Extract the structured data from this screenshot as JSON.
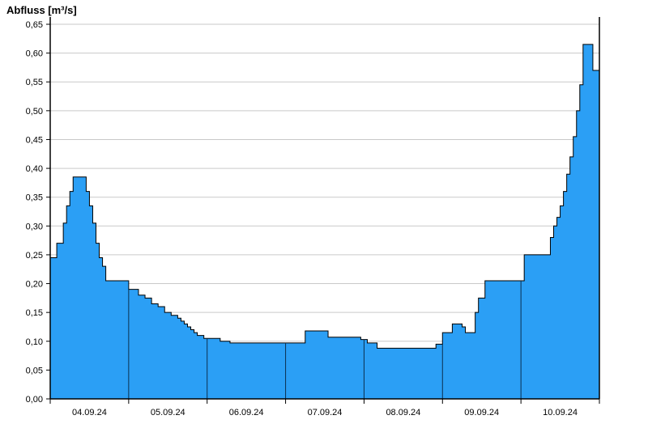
{
  "chart_data": {
    "type": "area",
    "title": "Abfluss [m³/s]",
    "ylabel": "Abfluss [m³/s]",
    "unit": "m³/s",
    "series_name": "Abfluss",
    "ylim": [
      0,
      0.65
    ],
    "y_tick_values": [
      0,
      0.05,
      0.1,
      0.15,
      0.2,
      0.25,
      0.3,
      0.35,
      0.4,
      0.45,
      0.5,
      0.55,
      0.6,
      0.65
    ],
    "y_tick_labels": [
      "0,00",
      "0,05",
      "0,10",
      "0,15",
      "0,20",
      "0,25",
      "0,30",
      "0,35",
      "0,40",
      "0,45",
      "0,50",
      "0,55",
      "0,60",
      "0,65"
    ],
    "x_tick_labels": [
      "04.09.24",
      "05.09.24",
      "06.09.24",
      "07.09.24",
      "08.09.24",
      "09.09.24",
      "10.09.24"
    ],
    "hours_total": 168,
    "hours_per_day": 24,
    "grid": "horizontal",
    "legend": "none",
    "steps": [
      [
        0,
        0.245
      ],
      [
        2,
        0.27
      ],
      [
        4,
        0.305
      ],
      [
        5,
        0.335
      ],
      [
        6,
        0.36
      ],
      [
        7,
        0.385
      ],
      [
        11,
        0.36
      ],
      [
        12,
        0.335
      ],
      [
        13,
        0.305
      ],
      [
        14,
        0.27
      ],
      [
        15,
        0.245
      ],
      [
        16,
        0.23
      ],
      [
        17,
        0.205
      ],
      [
        24,
        0.19
      ],
      [
        27,
        0.18
      ],
      [
        29,
        0.175
      ],
      [
        31,
        0.165
      ],
      [
        33,
        0.16
      ],
      [
        35,
        0.15
      ],
      [
        37,
        0.145
      ],
      [
        39,
        0.14
      ],
      [
        40,
        0.135
      ],
      [
        41,
        0.13
      ],
      [
        42,
        0.125
      ],
      [
        43,
        0.12
      ],
      [
        44,
        0.115
      ],
      [
        45,
        0.11
      ],
      [
        47,
        0.105
      ],
      [
        52,
        0.1
      ],
      [
        55,
        0.097
      ],
      [
        78,
        0.118
      ],
      [
        85,
        0.107
      ],
      [
        95,
        0.103
      ],
      [
        97,
        0.097
      ],
      [
        100,
        0.088
      ],
      [
        118,
        0.095
      ],
      [
        120,
        0.115
      ],
      [
        123,
        0.13
      ],
      [
        126,
        0.125
      ],
      [
        127,
        0.115
      ],
      [
        130,
        0.15
      ],
      [
        131,
        0.175
      ],
      [
        133,
        0.205
      ],
      [
        145,
        0.25
      ],
      [
        153,
        0.28
      ],
      [
        154,
        0.3
      ],
      [
        155,
        0.315
      ],
      [
        156,
        0.335
      ],
      [
        157,
        0.36
      ],
      [
        158,
        0.39
      ],
      [
        159,
        0.42
      ],
      [
        160,
        0.455
      ],
      [
        161,
        0.5
      ],
      [
        162,
        0.545
      ],
      [
        163,
        0.615
      ],
      [
        166,
        0.57
      ]
    ],
    "colors": {
      "fill": "#2B9FF5",
      "outline": "#000000",
      "grid": "#c9c9c9",
      "day_line": "#0b3050",
      "axis": "#000000"
    }
  }
}
